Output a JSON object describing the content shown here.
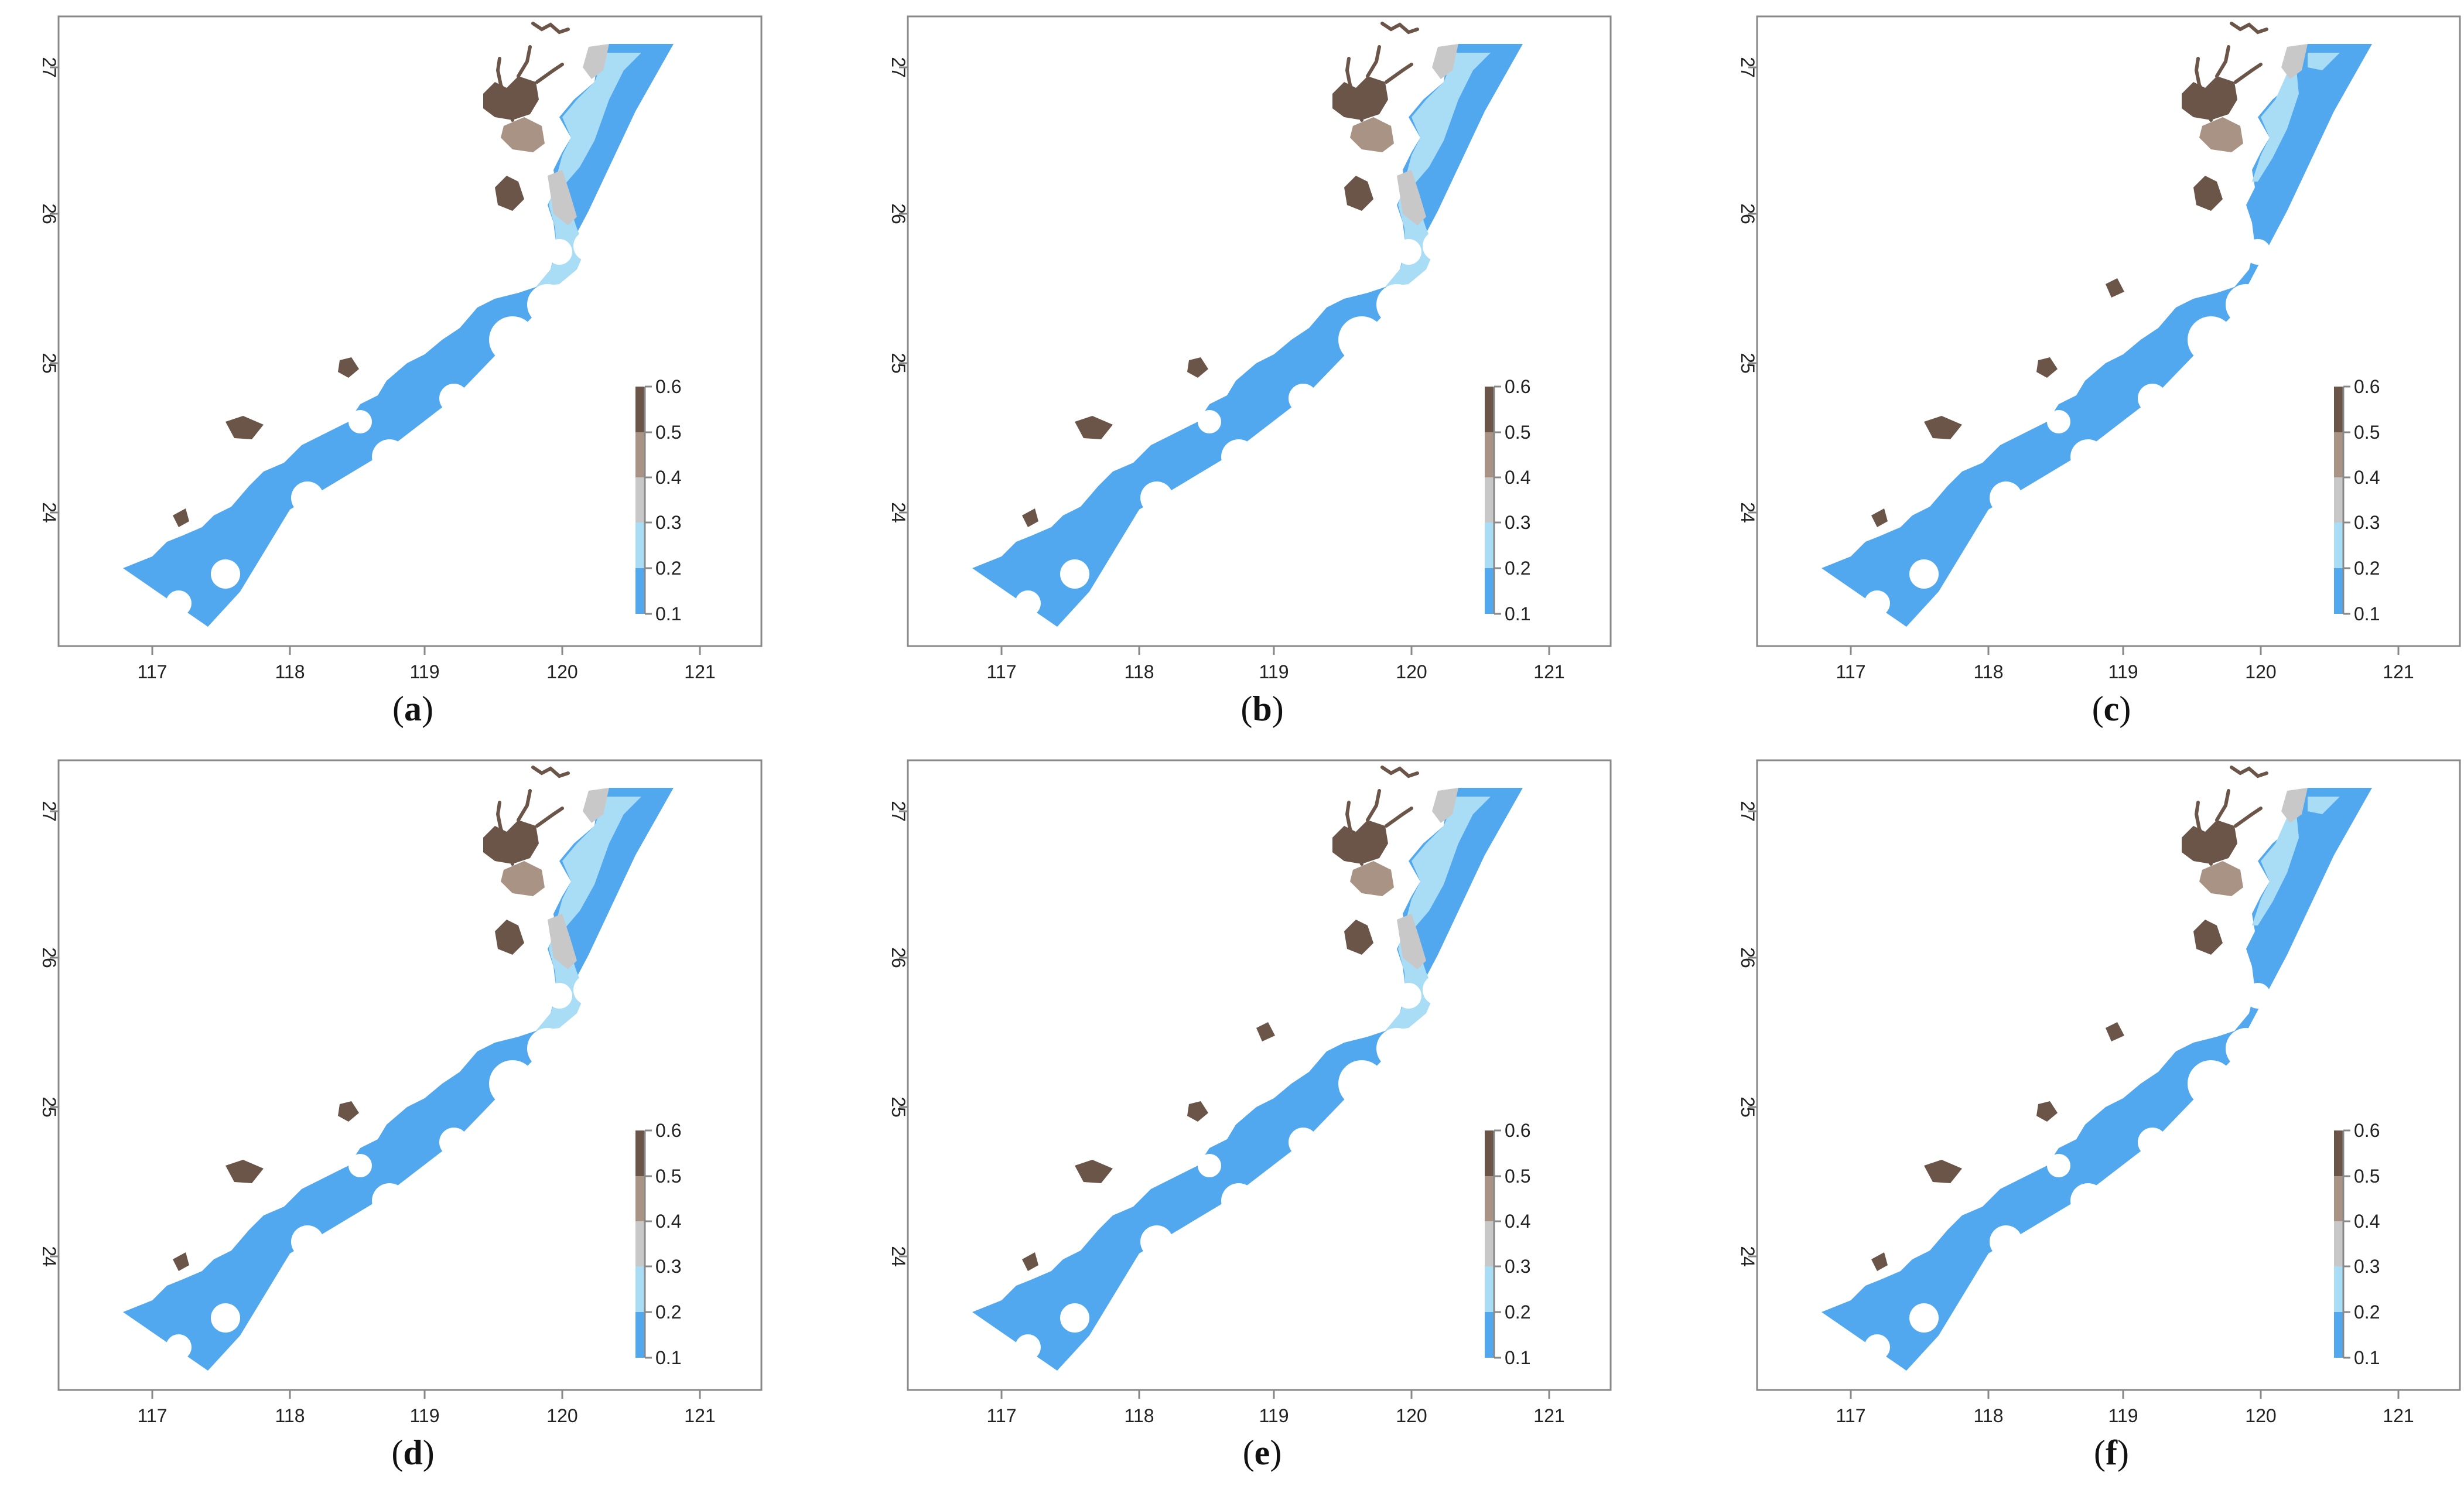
{
  "colors": {
    "sea": "#52A8EE",
    "light_blue": "#A9DCF5",
    "gray": "#C8C8C8",
    "light_brown": "#A89384",
    "dark_brown": "#6B5548",
    "axis": "#888888",
    "text": "#222222"
  },
  "axes": {
    "x_ticks": [
      "117",
      "118",
      "119",
      "120",
      "121"
    ],
    "y_ticks": [
      "27",
      "26",
      "25",
      "24"
    ]
  },
  "legend": {
    "labels": [
      "0.6",
      "0.5",
      "0.4",
      "0.3",
      "0.2",
      "0.1"
    ]
  },
  "panels": [
    {
      "label": "a",
      "open": "(",
      "close": ")"
    },
    {
      "label": "b",
      "open": "(",
      "close": ")"
    },
    {
      "label": "c",
      "open": "(",
      "close": ")"
    },
    {
      "label": "d",
      "open": "(",
      "close": ")"
    },
    {
      "label": "e",
      "open": "(",
      "close": ")"
    },
    {
      "label": "f",
      "open": "(",
      "close": ")"
    }
  ]
}
